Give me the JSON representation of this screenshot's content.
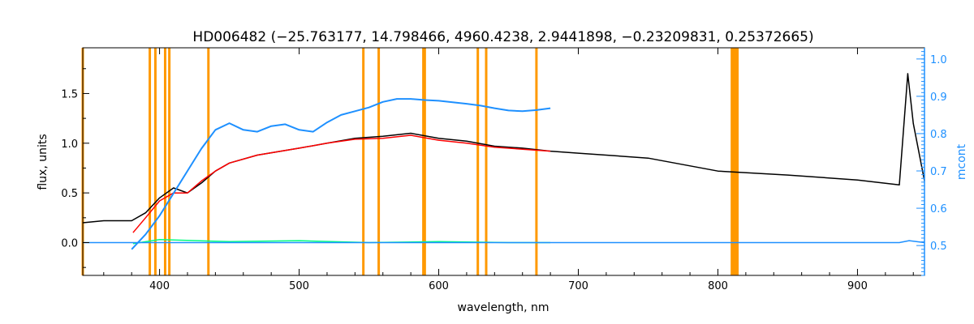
{
  "chart_data": {
    "type": "line",
    "title": "HD006482   (−25.763177, 14.798466, 4960.4238, 2.9441898, −0.23209831, 0.25372665)",
    "xlabel": "wavelength, nm",
    "ylabel": "flux, units",
    "y2label": "mcont",
    "xlim": [
      345,
      948
    ],
    "ylim": [
      -0.33,
      1.96
    ],
    "y2lim": [
      0.42,
      1.03
    ],
    "x_ticks": [
      400,
      500,
      600,
      700,
      800,
      900
    ],
    "y_ticks": [
      0.0,
      0.5,
      1.0,
      1.5
    ],
    "y2_ticks": [
      0.5,
      0.6,
      0.7,
      0.8,
      0.9,
      1.0
    ],
    "x_tick_labels": [
      "400",
      "500",
      "600",
      "700",
      "800",
      "900"
    ],
    "y_tick_labels": [
      "0.0",
      "0.5",
      "1.0",
      "1.5"
    ],
    "y2_tick_labels": [
      "0.5",
      "0.6",
      "0.7",
      "0.8",
      "0.9",
      "1.0"
    ],
    "grid": false,
    "masked_lines_nm": [
      345,
      393,
      397,
      404,
      407,
      435,
      546,
      557,
      589,
      590,
      628,
      634,
      670,
      810,
      811,
      812,
      813,
      814
    ],
    "series": [
      {
        "color": "#000000",
        "x": [
          345,
          360,
          380,
          390,
          400,
          410,
          420,
          430,
          440,
          450,
          470,
          500,
          520,
          540,
          560,
          580,
          600,
          620,
          640,
          660,
          680,
          700,
          750,
          800,
          850,
          900,
          930,
          936,
          940,
          948
        ],
        "values": [
          0.2,
          0.22,
          0.22,
          0.3,
          0.45,
          0.55,
          0.5,
          0.6,
          0.72,
          0.8,
          0.88,
          0.95,
          1.0,
          1.05,
          1.07,
          1.1,
          1.05,
          1.02,
          0.97,
          0.95,
          0.92,
          0.9,
          0.85,
          0.72,
          0.68,
          0.63,
          0.58,
          1.7,
          1.2,
          0.62
        ]
      },
      {
        "color": "#ff0000",
        "x": [
          381,
          390,
          400,
          410,
          420,
          430,
          440,
          450,
          470,
          500,
          520,
          540,
          560,
          580,
          600,
          620,
          640,
          660,
          680
        ],
        "values": [
          0.1,
          0.25,
          0.42,
          0.5,
          0.5,
          0.62,
          0.72,
          0.8,
          0.88,
          0.95,
          1.0,
          1.04,
          1.05,
          1.08,
          1.03,
          1.0,
          0.96,
          0.94,
          0.92
        ]
      },
      {
        "color": "#00ff7f",
        "x": [
          381,
          400,
          450,
          500,
          550,
          600,
          650,
          680
        ],
        "values": [
          -0.01,
          0.03,
          0.01,
          0.02,
          0.0,
          0.01,
          0.0,
          0.0
        ]
      },
      {
        "color": "#1e90ff",
        "x": [
          345,
          380,
          381,
          700,
          800,
          900,
          930,
          937,
          948
        ],
        "values": [
          0.0,
          0.0,
          0.0,
          0.0,
          0.0,
          0.0,
          0.0,
          0.02,
          0.0
        ]
      },
      {
        "color": "#1e90ff",
        "axis": "y2",
        "x": [
          380,
          390,
          400,
          410,
          420,
          430,
          440,
          450,
          460,
          470,
          480,
          490,
          500,
          510,
          520,
          530,
          540,
          550,
          560,
          570,
          580,
          590,
          600,
          610,
          620,
          630,
          640,
          650,
          660,
          670,
          680
        ],
        "values": [
          0.49,
          0.53,
          0.58,
          0.64,
          0.7,
          0.76,
          0.81,
          0.828,
          0.81,
          0.805,
          0.82,
          0.825,
          0.81,
          0.805,
          0.83,
          0.85,
          0.86,
          0.87,
          0.885,
          0.893,
          0.893,
          0.89,
          0.888,
          0.884,
          0.88,
          0.875,
          0.868,
          0.862,
          0.86,
          0.863,
          0.868
        ]
      }
    ]
  }
}
